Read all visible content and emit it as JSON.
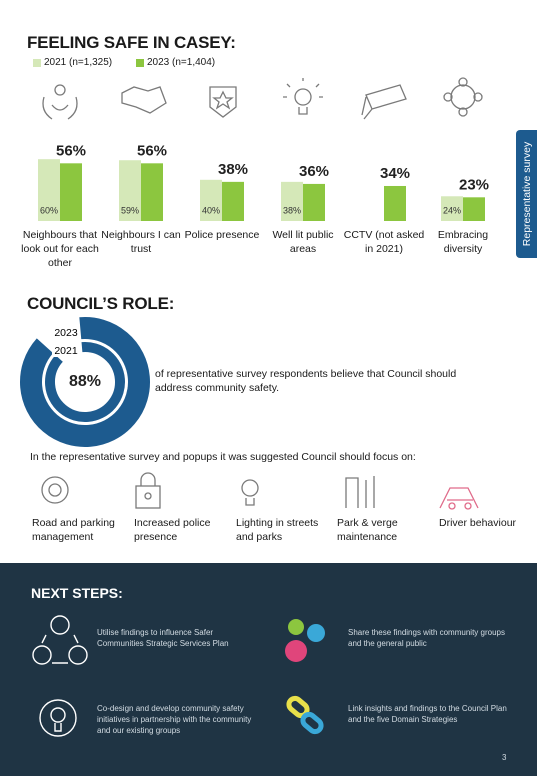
{
  "side_tab": "Representative survey",
  "feeling_safe": {
    "title": "FEELING SAFE IN CASEY:"
  },
  "chart_data": {
    "type": "bar",
    "categories": [
      "Neighbours that look out for each other",
      "Neighbours I can trust",
      "Police presence",
      "Well lit public areas",
      "CCTV (not asked in 2021)",
      "Embracing diversity"
    ],
    "series": [
      {
        "name": "2021 (n=1,325)",
        "color": "#d5e8b8",
        "values": [
          60,
          59,
          40,
          38,
          null,
          24
        ],
        "value_labels": [
          "60%",
          "59%",
          "40%",
          "38%",
          null,
          "24%"
        ]
      },
      {
        "name": "2023 (n=1,404)",
        "color": "#8cc63f",
        "values": [
          56,
          56,
          38,
          36,
          34,
          23
        ],
        "value_labels": [
          "56%",
          "56%",
          "38%",
          "36%",
          "34%",
          "23%"
        ]
      }
    ]
  },
  "council_role": {
    "title": "COUNCIL’S ROLE:",
    "donut": {
      "series": [
        "2023",
        "2021"
      ],
      "value": 88,
      "value_label": "88%"
    },
    "text": "of representative survey respondents believe that Council should address community safety.",
    "focus_intro": "In the representative survey and popups it was suggested Council should focus on:",
    "focus": [
      "Road and parking management",
      "Increased police presence",
      "Lighting in streets and parks",
      "Park & verge maintenance",
      "Driver behaviour"
    ]
  },
  "next_steps": {
    "title": "NEXT STEPS:",
    "items": [
      "Utilise findings to influence Safer Communities Strategic Services Plan",
      "Share these findings with community groups and the general public",
      "Co-design and develop community safety initiatives in partnership with the community and our existing groups",
      "Link insights and findings to the Council Plan and the five Domain Strategies"
    ]
  },
  "page_number": "3"
}
